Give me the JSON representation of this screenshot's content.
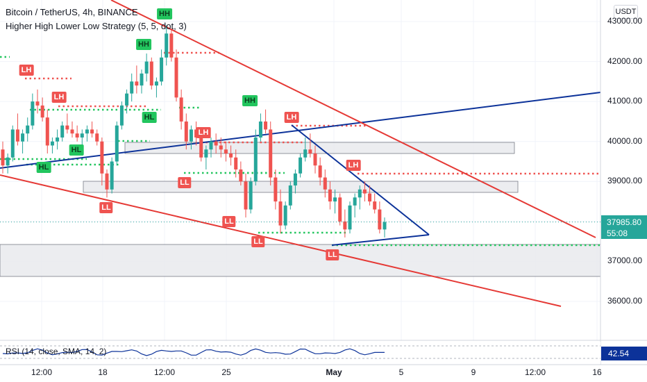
{
  "legend": {
    "title": "Bitcoin / TetherUS, 4h, BINANCE",
    "indicator": "Higher High Lower Low Strategy (5, 5, dot, 3)"
  },
  "currency": "USDT",
  "current_price": {
    "value": "37985.80",
    "countdown": "55:08"
  },
  "rsi": {
    "label": "RSI (14, close, SMA, 14, 2)",
    "value": "42.54"
  },
  "colors": {
    "up": "#26a69a",
    "down": "#ef5350",
    "trend_blue": "#0c3299",
    "trend_red": "#e53935",
    "green_dots": "#22c55e",
    "red_dots": "#ef5350"
  },
  "chart_data": {
    "type": "candlestick",
    "y_axis_ticks": [
      "43000.00",
      "42000.00",
      "41000.00",
      "40000.00",
      "39000.00",
      "38000.00",
      "37000.00",
      "36000.00"
    ],
    "x_axis_ticks": [
      "12:00",
      "18",
      "12:00",
      "25",
      "May",
      "5",
      "9",
      "12:00",
      "16"
    ],
    "ylim": [
      35600,
      43400
    ],
    "pivot_tags": [
      {
        "label": "HH",
        "kind": "hh"
      },
      {
        "label": "HH",
        "kind": "hh"
      },
      {
        "label": "HH",
        "kind": "hh"
      },
      {
        "label": "HL",
        "kind": "hl"
      },
      {
        "label": "HL",
        "kind": "hl"
      },
      {
        "label": "HL",
        "kind": "hl"
      },
      {
        "label": "LH",
        "kind": "lh"
      },
      {
        "label": "LH",
        "kind": "lh"
      },
      {
        "label": "LH",
        "kind": "lh"
      },
      {
        "label": "LH",
        "kind": "lh"
      },
      {
        "label": "LH",
        "kind": "lh"
      },
      {
        "label": "LL",
        "kind": "ll"
      },
      {
        "label": "LL",
        "kind": "ll"
      },
      {
        "label": "LL",
        "kind": "ll"
      },
      {
        "label": "LL",
        "kind": "ll"
      },
      {
        "label": "LL",
        "kind": "ll"
      }
    ],
    "candles_ohlc": [
      [
        39800,
        40000,
        39200,
        39400
      ],
      [
        39400,
        39700,
        39200,
        39600
      ],
      [
        39600,
        40400,
        39500,
        40300
      ],
      [
        40300,
        40700,
        39900,
        40000
      ],
      [
        40000,
        40300,
        39700,
        40200
      ],
      [
        40200,
        40600,
        40000,
        40400
      ],
      [
        40400,
        41200,
        40300,
        41000
      ],
      [
        41000,
        41300,
        40700,
        40900
      ],
      [
        40900,
        41100,
        40500,
        40600
      ],
      [
        40600,
        40800,
        39700,
        39900
      ],
      [
        39900,
        40100,
        39700,
        40000
      ],
      [
        40000,
        40300,
        39800,
        40100
      ],
      [
        40100,
        40500,
        40000,
        40400
      ],
      [
        40400,
        40700,
        40200,
        40300
      ],
      [
        40300,
        40500,
        40100,
        40200
      ],
      [
        40200,
        40400,
        40000,
        40100
      ],
      [
        40100,
        40300,
        39900,
        40200
      ],
      [
        40200,
        40400,
        40000,
        40300
      ],
      [
        40300,
        40500,
        40100,
        40200
      ],
      [
        40200,
        40300,
        39900,
        40000
      ],
      [
        40000,
        40100,
        38900,
        39200
      ],
      [
        39200,
        39300,
        38600,
        38800
      ],
      [
        38800,
        39600,
        38700,
        39500
      ],
      [
        39500,
        40500,
        39400,
        40400
      ],
      [
        40400,
        41000,
        40300,
        40900
      ],
      [
        40900,
        41300,
        40700,
        41200
      ],
      [
        41200,
        41700,
        41000,
        41500
      ],
      [
        41500,
        41900,
        41200,
        41400
      ],
      [
        41400,
        41800,
        41200,
        41700
      ],
      [
        41700,
        42200,
        41500,
        42000
      ],
      [
        42000,
        42100,
        41300,
        41400
      ],
      [
        41400,
        41600,
        41100,
        41500
      ],
      [
        41500,
        42300,
        41400,
        42100
      ],
      [
        42100,
        42900,
        41900,
        42700
      ],
      [
        42700,
        42800,
        42000,
        42100
      ],
      [
        42100,
        42300,
        41000,
        41100
      ],
      [
        41100,
        41300,
        40300,
        40500
      ],
      [
        40500,
        40700,
        39800,
        40000
      ],
      [
        40000,
        40400,
        39800,
        40300
      ],
      [
        40300,
        40500,
        39900,
        40100
      ],
      [
        40100,
        40300,
        39500,
        39600
      ],
      [
        39600,
        39900,
        39300,
        39800
      ],
      [
        39800,
        40100,
        39600,
        40000
      ],
      [
        40000,
        40200,
        39700,
        39900
      ],
      [
        39900,
        40100,
        39600,
        39800
      ],
      [
        39800,
        40000,
        39500,
        39700
      ],
      [
        39700,
        39900,
        39400,
        39600
      ],
      [
        39600,
        39800,
        39100,
        39300
      ],
      [
        39300,
        39500,
        38900,
        39000
      ],
      [
        39000,
        39200,
        38100,
        38300
      ],
      [
        38300,
        39100,
        38200,
        39000
      ],
      [
        39000,
        40300,
        38900,
        40100
      ],
      [
        40100,
        40700,
        40000,
        40500
      ],
      [
        40500,
        40800,
        40200,
        40300
      ],
      [
        40300,
        40500,
        38900,
        39100
      ],
      [
        39100,
        39300,
        38300,
        38500
      ],
      [
        38500,
        38800,
        37700,
        37900
      ],
      [
        37900,
        38500,
        37800,
        38400
      ],
      [
        38400,
        39000,
        38300,
        38900
      ],
      [
        38900,
        39300,
        38700,
        39200
      ],
      [
        39200,
        39700,
        39100,
        39600
      ],
      [
        39600,
        40100,
        39500,
        39800
      ],
      [
        39800,
        40200,
        39600,
        39700
      ],
      [
        39700,
        39900,
        39200,
        39400
      ],
      [
        39400,
        39600,
        38900,
        39100
      ],
      [
        39100,
        39300,
        38600,
        38800
      ],
      [
        38800,
        39000,
        38300,
        38500
      ],
      [
        38500,
        38800,
        38200,
        38600
      ],
      [
        38600,
        38700,
        37900,
        38000
      ],
      [
        38000,
        38300,
        37600,
        37800
      ],
      [
        37800,
        38500,
        37700,
        38400
      ],
      [
        38400,
        38700,
        38100,
        38600
      ],
      [
        38600,
        38900,
        38300,
        38800
      ],
      [
        38800,
        39000,
        38500,
        38700
      ],
      [
        38700,
        38900,
        38400,
        38500
      ],
      [
        38500,
        38700,
        38200,
        38300
      ],
      [
        38300,
        38500,
        37700,
        37800
      ],
      [
        37800,
        38100,
        37600,
        37986
      ]
    ]
  }
}
